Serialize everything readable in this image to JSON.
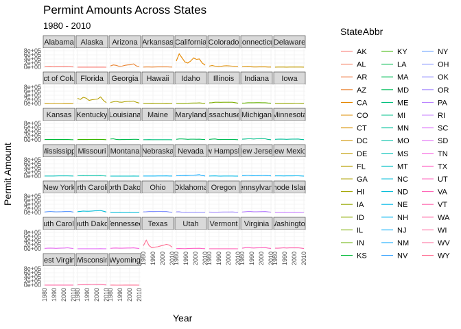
{
  "chart_data": {
    "type": "line",
    "title": "Permint Amounts Across States",
    "subtitle": "1980 - 2010",
    "xlabel": "Year",
    "ylabel": "Permit Amount",
    "legend_title": "StateAbbr",
    "legend_position": "right",
    "grid": true,
    "x_ticks": [
      "1980",
      "1990",
      "2000",
      "2010"
    ],
    "y_ticks": [
      "0e+00",
      "2e+05",
      "4e+05",
      "6e+05",
      "8e+05"
    ],
    "xlim": [
      1980,
      2010
    ],
    "ylim": [
      0,
      900000
    ],
    "x": [
      1980,
      1983,
      1986,
      1989,
      1992,
      1995,
      1998,
      2001,
      2004,
      2007,
      2010
    ],
    "facets": [
      {
        "strip": "Alabama",
        "abbr": "AL",
        "color": "#F8766D",
        "values": [
          15000,
          20000,
          25000,
          18000,
          20000,
          22000,
          25000,
          30000,
          35000,
          20000,
          12000
        ]
      },
      {
        "strip": "Alaska",
        "abbr": "AK",
        "color": "#F8766D",
        "values": [
          3000,
          4000,
          2500,
          2000,
          2000,
          2500,
          2500,
          3000,
          3000,
          2000,
          1500
        ]
      },
      {
        "strip": "Arizona",
        "abbr": "AZ",
        "color": "#EA8331",
        "values": [
          60000,
          110000,
          90000,
          40000,
          50000,
          90000,
          110000,
          120000,
          160000,
          60000,
          20000
        ]
      },
      {
        "strip": "Arkansas",
        "abbr": "AR",
        "color": "#EA8331",
        "values": [
          8000,
          10000,
          10000,
          8000,
          9000,
          12000,
          12000,
          13000,
          15000,
          10000,
          8000
        ]
      },
      {
        "strip": "California",
        "abbr": "CA",
        "color": "#E58700",
        "values": [
          300000,
          650000,
          450000,
          250000,
          200000,
          300000,
          450000,
          380000,
          400000,
          200000,
          100000
        ]
      },
      {
        "strip": "Colorado",
        "abbr": "CO",
        "color": "#DE8C00",
        "values": [
          50000,
          80000,
          50000,
          30000,
          40000,
          60000,
          70000,
          60000,
          50000,
          30000,
          15000
        ]
      },
      {
        "strip": "Connecticut",
        "abbr": "CT",
        "color": "#D89000",
        "values": [
          15000,
          25000,
          30000,
          20000,
          10000,
          10000,
          12000,
          12000,
          13000,
          8000,
          5000
        ]
      },
      {
        "strip": "Delaware",
        "abbr": "DE",
        "color": "#C09B00",
        "values": [
          4000,
          5000,
          6000,
          5000,
          4000,
          5000,
          5000,
          6000,
          7000,
          5000,
          3000
        ]
      },
      {
        "strip": "District of Columbia",
        "abbr": "DC",
        "color": "#C99800",
        "values": [
          2000,
          2000,
          1500,
          1500,
          1000,
          1000,
          1500,
          2000,
          3000,
          2000,
          1500
        ]
      },
      {
        "strip": "Florida",
        "abbr": "FL",
        "color": "#B79F00",
        "values": [
          250000,
          200000,
          300000,
          260000,
          150000,
          180000,
          200000,
          220000,
          320000,
          150000,
          40000
        ]
      },
      {
        "strip": "Georgia",
        "abbr": "GA",
        "color": "#AEA200",
        "values": [
          50000,
          80000,
          110000,
          70000,
          60000,
          90000,
          110000,
          110000,
          120000,
          60000,
          20000
        ]
      },
      {
        "strip": "Hawaii",
        "abbr": "HI",
        "color": "#A3A500",
        "values": [
          10000,
          10000,
          9000,
          12000,
          10000,
          8000,
          7000,
          8000,
          10000,
          8000,
          4000
        ]
      },
      {
        "strip": "Idaho",
        "abbr": "ID",
        "color": "#8EAB00",
        "values": [
          8000,
          7000,
          8000,
          10000,
          15000,
          20000,
          22000,
          25000,
          30000,
          15000,
          6000
        ]
      },
      {
        "strip": "Illinois",
        "abbr": "IL",
        "color": "#7CAE00",
        "values": [
          30000,
          40000,
          60000,
          60000,
          55000,
          60000,
          60000,
          60000,
          60000,
          40000,
          15000
        ]
      },
      {
        "strip": "Indiana",
        "abbr": "IN",
        "color": "#64B200",
        "values": [
          20000,
          25000,
          35000,
          35000,
          38000,
          40000,
          40000,
          38000,
          35000,
          25000,
          12000
        ]
      },
      {
        "strip": "Iowa",
        "abbr": "IA",
        "color": "#96A900",
        "values": [
          10000,
          8000,
          9000,
          10000,
          12000,
          14000,
          15000,
          16000,
          17000,
          12000,
          8000
        ]
      },
      {
        "strip": "Kansas",
        "abbr": "KS",
        "color": "#00BA38",
        "values": [
          12000,
          15000,
          14000,
          12000,
          12000,
          14000,
          15000,
          15000,
          16000,
          10000,
          6000
        ]
      },
      {
        "strip": "Kentucky",
        "abbr": "KY",
        "color": "#39B600",
        "values": [
          12000,
          14000,
          15000,
          15000,
          18000,
          20000,
          20000,
          20000,
          20000,
          14000,
          8000
        ]
      },
      {
        "strip": "Louisiana",
        "abbr": "LA",
        "color": "#00BB4E",
        "values": [
          40000,
          50000,
          20000,
          10000,
          12000,
          15000,
          18000,
          20000,
          25000,
          25000,
          15000
        ]
      },
      {
        "strip": "Maine",
        "abbr": "ME",
        "color": "#00BF7D",
        "values": [
          5000,
          7000,
          9000,
          6000,
          5000,
          5000,
          6000,
          7000,
          8000,
          5000,
          3000
        ]
      },
      {
        "strip": "Maryland",
        "abbr": "MD",
        "color": "#00BD5C",
        "values": [
          25000,
          45000,
          45000,
          35000,
          25000,
          30000,
          30000,
          28000,
          30000,
          20000,
          12000
        ]
      },
      {
        "strip": "Massachusetts",
        "abbr": "MA",
        "color": "#00BC56",
        "values": [
          20000,
          35000,
          45000,
          20000,
          15000,
          18000,
          18000,
          17000,
          20000,
          15000,
          8000
        ]
      },
      {
        "strip": "Michigan",
        "abbr": "MI",
        "color": "#00C08B",
        "values": [
          30000,
          40000,
          50000,
          50000,
          40000,
          50000,
          55000,
          55000,
          50000,
          20000,
          8000
        ]
      },
      {
        "strip": "Minnesota",
        "abbr": "MN",
        "color": "#00C19A",
        "values": [
          25000,
          30000,
          35000,
          30000,
          25000,
          30000,
          35000,
          38000,
          40000,
          20000,
          10000
        ]
      },
      {
        "strip": "Mississippi",
        "abbr": "MS",
        "color": "#00C0B8",
        "values": [
          8000,
          8000,
          7000,
          8000,
          9000,
          12000,
          13000,
          13000,
          14000,
          10000,
          6000
        ]
      },
      {
        "strip": "Missouri",
        "abbr": "MO",
        "color": "#00C1A7",
        "values": [
          18000,
          25000,
          30000,
          25000,
          22000,
          25000,
          28000,
          28000,
          30000,
          18000,
          8000
        ]
      },
      {
        "strip": "Montana",
        "abbr": "MT",
        "color": "#00BFC4",
        "values": [
          4000,
          3000,
          2000,
          2000,
          3000,
          4000,
          4000,
          5000,
          6000,
          4000,
          2500
        ]
      },
      {
        "strip": "Nebraska",
        "abbr": "NE",
        "color": "#00B2F3",
        "values": [
          8000,
          7000,
          7000,
          7000,
          8000,
          9000,
          10000,
          11000,
          12000,
          8000,
          6000
        ]
      },
      {
        "strip": "Nevada",
        "abbr": "NV",
        "color": "#00A5FF",
        "values": [
          20000,
          25000,
          30000,
          45000,
          40000,
          50000,
          50000,
          55000,
          70000,
          30000,
          8000
        ]
      },
      {
        "strip": "New Hampshire",
        "abbr": "NH",
        "color": "#00B8E7",
        "values": [
          6000,
          10000,
          13000,
          6000,
          5000,
          6000,
          7000,
          8000,
          8000,
          5000,
          3000
        ]
      },
      {
        "strip": "New Jersey",
        "abbr": "NJ",
        "color": "#00ACFC",
        "values": [
          20000,
          35000,
          50000,
          30000,
          20000,
          25000,
          30000,
          32000,
          35000,
          25000,
          15000
        ]
      },
      {
        "strip": "New Mexico",
        "abbr": "NM",
        "color": "#00B4EF",
        "values": [
          12000,
          15000,
          12000,
          10000,
          12000,
          14000,
          15000,
          16000,
          17000,
          10000,
          5000
        ]
      },
      {
        "strip": "New York",
        "abbr": "NY",
        "color": "#619CFF",
        "values": [
          25000,
          40000,
          50000,
          40000,
          30000,
          35000,
          40000,
          45000,
          50000,
          45000,
          20000
        ]
      },
      {
        "strip": "North Carolina",
        "abbr": "NC",
        "color": "#00BCD8",
        "values": [
          40000,
          55000,
          70000,
          60000,
          60000,
          70000,
          80000,
          85000,
          95000,
          60000,
          25000
        ]
      },
      {
        "strip": "North Dakota",
        "abbr": "ND",
        "color": "#00BCD8",
        "values": [
          3000,
          2500,
          2000,
          2000,
          2000,
          2500,
          3000,
          3500,
          4000,
          5000,
          7000
        ]
      },
      {
        "strip": "Ohio",
        "abbr": "OH",
        "color": "#8494FF",
        "values": [
          30000,
          35000,
          45000,
          45000,
          45000,
          50000,
          50000,
          48000,
          45000,
          25000,
          10000
        ]
      },
      {
        "strip": "Oklahoma",
        "abbr": "OK",
        "color": "#9590FF",
        "values": [
          30000,
          35000,
          10000,
          8000,
          9000,
          12000,
          13000,
          14000,
          18000,
          12000,
          10000
        ]
      },
      {
        "strip": "Oregon",
        "abbr": "OR",
        "color": "#A58AFF",
        "values": [
          20000,
          12000,
          12000,
          15000,
          20000,
          25000,
          25000,
          25000,
          28000,
          15000,
          6000
        ]
      },
      {
        "strip": "Pennsylvania",
        "abbr": "PA",
        "color": "#B983FF",
        "values": [
          25000,
          35000,
          50000,
          45000,
          35000,
          38000,
          40000,
          42000,
          45000,
          30000,
          18000
        ]
      },
      {
        "strip": "Rhode Island",
        "abbr": "RI",
        "color": "#C77CFF",
        "values": [
          3000,
          4000,
          5000,
          4000,
          3000,
          3000,
          3000,
          3000,
          3000,
          2000,
          1000
        ]
      },
      {
        "strip": "South Carolina",
        "abbr": "SC",
        "color": "#E76BF3",
        "values": [
          20000,
          30000,
          35000,
          30000,
          25000,
          30000,
          35000,
          40000,
          50000,
          30000,
          12000
        ]
      },
      {
        "strip": "South Dakota",
        "abbr": "SD",
        "color": "#E36EF6",
        "values": [
          3000,
          3000,
          3000,
          3000,
          3500,
          4000,
          4500,
          5000,
          6000,
          4500,
          3500
        ]
      },
      {
        "strip": "Tennessee",
        "abbr": "TN",
        "color": "#F763E0",
        "values": [
          25000,
          35000,
          40000,
          30000,
          30000,
          38000,
          40000,
          40000,
          45000,
          30000,
          15000
        ]
      },
      {
        "strip": "Texas",
        "abbr": "TX",
        "color": "#FF6C91",
        "values": [
          150000,
          420000,
          150000,
          50000,
          80000,
          100000,
          140000,
          170000,
          220000,
          180000,
          80000
        ]
      },
      {
        "strip": "Utah",
        "abbr": "UT",
        "color": "#FF61C3",
        "values": [
          10000,
          12000,
          10000,
          8000,
          15000,
          20000,
          22000,
          22000,
          28000,
          15000,
          8000
        ]
      },
      {
        "strip": "Vermont",
        "abbr": "VT",
        "color": "#FF63B6",
        "values": [
          3000,
          4000,
          5000,
          3000,
          2500,
          2500,
          3000,
          3000,
          3500,
          2500,
          1500
        ]
      },
      {
        "strip": "Virginia",
        "abbr": "VA",
        "color": "#FF62BC",
        "values": [
          30000,
          55000,
          65000,
          45000,
          40000,
          45000,
          50000,
          55000,
          60000,
          35000,
          20000
        ]
      },
      {
        "strip": "Washington",
        "abbr": "WA",
        "color": "#FF65AE",
        "values": [
          30000,
          30000,
          40000,
          50000,
          40000,
          45000,
          45000,
          45000,
          50000,
          35000,
          15000
        ]
      },
      {
        "strip": "West Virginia",
        "abbr": "WV",
        "color": "#FF67A4",
        "values": [
          3000,
          3000,
          3000,
          3500,
          4000,
          4000,
          4000,
          4000,
          4500,
          3500,
          2500
        ]
      },
      {
        "strip": "Wisconsin",
        "abbr": "WI",
        "color": "#FF689F",
        "values": [
          15000,
          18000,
          25000,
          28000,
          30000,
          32000,
          35000,
          35000,
          35000,
          20000,
          10000
        ]
      },
      {
        "strip": "Wyoming",
        "abbr": "WY",
        "color": "#FF6C91",
        "values": [
          5000,
          3000,
          1500,
          1000,
          1500,
          2000,
          2000,
          2000,
          2500,
          2000,
          1500
        ]
      }
    ],
    "legend": [
      {
        "label": "AK",
        "color": "#F8766D"
      },
      {
        "label": "AL",
        "color": "#F47B5C"
      },
      {
        "label": "AR",
        "color": "#EF7F4A"
      },
      {
        "label": "AZ",
        "color": "#EA8331"
      },
      {
        "label": "CA",
        "color": "#E58700"
      },
      {
        "label": "CO",
        "color": "#DE8C00"
      },
      {
        "label": "CT",
        "color": "#D89000"
      },
      {
        "label": "DC",
        "color": "#CF9400"
      },
      {
        "label": "DE",
        "color": "#C09B00"
      },
      {
        "label": "FL",
        "color": "#B79F00"
      },
      {
        "label": "GA",
        "color": "#AEA200"
      },
      {
        "label": "HI",
        "color": "#A3A500"
      },
      {
        "label": "IA",
        "color": "#96A900"
      },
      {
        "label": "ID",
        "color": "#8EAB00"
      },
      {
        "label": "IL",
        "color": "#7CAE00"
      },
      {
        "label": "IN",
        "color": "#64B200"
      },
      {
        "label": "KS",
        "color": "#00BA38"
      },
      {
        "label": "KY",
        "color": "#39B600"
      },
      {
        "label": "LA",
        "color": "#00BB4E"
      },
      {
        "label": "MA",
        "color": "#00BC56"
      },
      {
        "label": "MD",
        "color": "#00BD5C"
      },
      {
        "label": "ME",
        "color": "#00BF7D"
      },
      {
        "label": "MI",
        "color": "#00C08B"
      },
      {
        "label": "MN",
        "color": "#00C19A"
      },
      {
        "label": "MO",
        "color": "#00C1A7"
      },
      {
        "label": "MS",
        "color": "#00C0B8"
      },
      {
        "label": "MT",
        "color": "#00BFC4"
      },
      {
        "label": "NC",
        "color": "#00BCD8"
      },
      {
        "label": "ND",
        "color": "#00BCD8"
      },
      {
        "label": "NE",
        "color": "#00B8E7"
      },
      {
        "label": "NH",
        "color": "#00B4EF"
      },
      {
        "label": "NJ",
        "color": "#00ACFC"
      },
      {
        "label": "NM",
        "color": "#00A5FF"
      },
      {
        "label": "NV",
        "color": "#35A2FF"
      },
      {
        "label": "NY",
        "color": "#619CFF"
      },
      {
        "label": "OH",
        "color": "#8494FF"
      },
      {
        "label": "OK",
        "color": "#9590FF"
      },
      {
        "label": "OR",
        "color": "#A58AFF"
      },
      {
        "label": "PA",
        "color": "#B983FF"
      },
      {
        "label": "RI",
        "color": "#C77CFF"
      },
      {
        "label": "SC",
        "color": "#DC71FA"
      },
      {
        "label": "SD",
        "color": "#E36EF6"
      },
      {
        "label": "TN",
        "color": "#F763E0"
      },
      {
        "label": "TX",
        "color": "#FF61C3"
      },
      {
        "label": "UT",
        "color": "#FF62BC"
      },
      {
        "label": "VA",
        "color": "#FF63B6"
      },
      {
        "label": "VT",
        "color": "#FF65AE"
      },
      {
        "label": "WA",
        "color": "#FF67A4"
      },
      {
        "label": "WI",
        "color": "#FF689F"
      },
      {
        "label": "WV",
        "color": "#FF6A98"
      },
      {
        "label": "WY",
        "color": "#FF6C91"
      }
    ]
  }
}
